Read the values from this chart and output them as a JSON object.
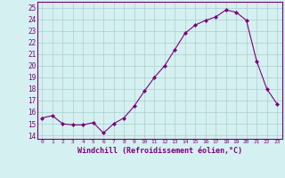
{
  "x": [
    0,
    1,
    2,
    3,
    4,
    5,
    6,
    7,
    8,
    9,
    10,
    11,
    12,
    13,
    14,
    15,
    16,
    17,
    18,
    19,
    20,
    21,
    22,
    23
  ],
  "y": [
    15.5,
    15.7,
    15.0,
    14.9,
    14.9,
    15.1,
    14.2,
    15.0,
    15.5,
    16.5,
    17.8,
    19.0,
    20.0,
    21.4,
    22.8,
    23.5,
    23.9,
    24.2,
    24.8,
    24.6,
    23.9,
    20.4,
    18.0,
    16.7
  ],
  "line_color": "#7b007b",
  "marker": "D",
  "marker_size": 2,
  "bg_color": "#d5f0f0",
  "grid_color": "#aacece",
  "xlabel": "Windchill (Refroidissement éolien,°C)",
  "ylim": [
    13.7,
    25.5
  ],
  "xlim": [
    -0.5,
    23.5
  ],
  "yticks": [
    14,
    15,
    16,
    17,
    18,
    19,
    20,
    21,
    22,
    23,
    24,
    25
  ],
  "xticks": [
    0,
    1,
    2,
    3,
    4,
    5,
    6,
    7,
    8,
    9,
    10,
    11,
    12,
    13,
    14,
    15,
    16,
    17,
    18,
    19,
    20,
    21,
    22,
    23
  ],
  "label_color": "#7b007b",
  "tick_color": "#7b007b",
  "spine_color": "#7b007b"
}
